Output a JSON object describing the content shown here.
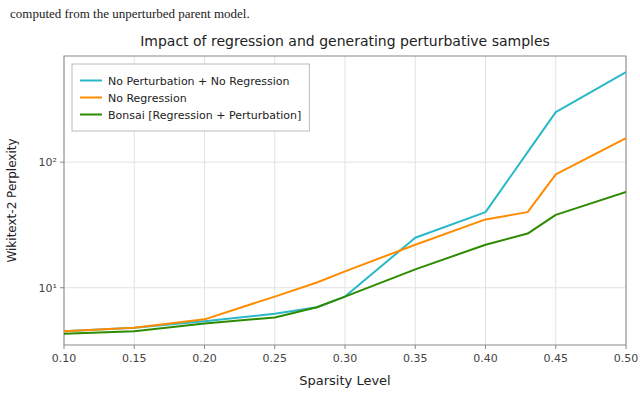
{
  "chart_data": {
    "type": "line",
    "title": "Impact of regression and generating perturbative samples",
    "annotations": [
      "computed from the unperturbed parent model."
    ],
    "x_label": "Sparsity Level",
    "y_label": "Wikitext-2 Perplexity",
    "x": [
      0.1,
      0.15,
      0.2,
      0.25,
      0.28,
      0.3,
      0.35,
      0.4,
      0.43,
      0.45,
      0.5
    ],
    "series": [
      {
        "name": "No Perturbation + No Regression",
        "color": "#29b8c8",
        "values": [
          4.5,
          4.8,
          5.4,
          6.2,
          7.0,
          8.5,
          25.0,
          40.0,
          120.0,
          250.0,
          520.0
        ]
      },
      {
        "name": "No Regression",
        "color": "#ff8c00",
        "values": [
          4.5,
          4.8,
          5.6,
          8.5,
          11.0,
          13.5,
          22.0,
          35.0,
          40.0,
          80.0,
          155.0
        ]
      },
      {
        "name": "Bonsai [Regression + Perturbation]",
        "color": "#2e8b00",
        "values": [
          4.3,
          4.5,
          5.2,
          5.8,
          7.0,
          8.5,
          14.0,
          22.0,
          27.0,
          38.0,
          58.0
        ]
      }
    ],
    "xlim": [
      0.1,
      0.5
    ],
    "xticks": [
      {
        "value": 0.1,
        "label": "0.10"
      },
      0.15,
      {
        "value": 0.2,
        "label": "0.20"
      },
      0.25,
      {
        "value": 0.3,
        "label": "0.30"
      },
      0.35,
      {
        "value": 0.4,
        "label": "0.40"
      },
      0.45,
      {
        "value": 0.5,
        "label": "0.50"
      }
    ],
    "ylim": [
      3.5,
      700
    ],
    "yticks": [
      {
        "value": 10,
        "label": "10¹"
      },
      {
        "value": 100,
        "label": "10²"
      }
    ],
    "log": "y",
    "grid": true,
    "legend": "upper left"
  }
}
